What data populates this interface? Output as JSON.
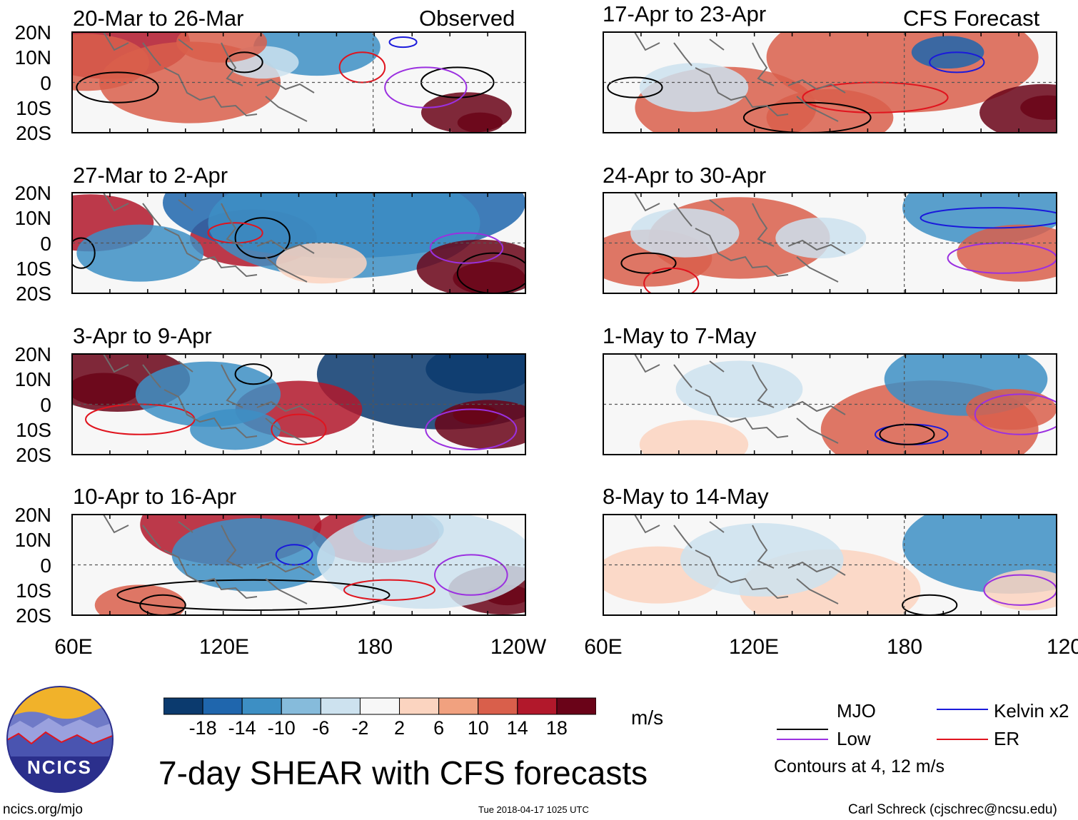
{
  "figure_title": "7-day SHEAR with CFS forecasts",
  "section_labels": {
    "left": "Observed",
    "right": "CFS Forecast"
  },
  "axes": {
    "lat_ticks": [
      "20N",
      "10N",
      "0",
      "10S",
      "20S"
    ],
    "lon_ticks": [
      "60E",
      "120E",
      "180",
      "120W"
    ]
  },
  "panels": [
    {
      "title": "20-Mar to 26-Mar",
      "type": "observed"
    },
    {
      "title": "27-Mar to 2-Apr",
      "type": "observed"
    },
    {
      "title": "3-Apr to 9-Apr",
      "type": "observed"
    },
    {
      "title": "10-Apr to 16-Apr",
      "type": "observed"
    },
    {
      "title": "17-Apr to 23-Apr",
      "type": "forecast"
    },
    {
      "title": "24-Apr to 30-Apr",
      "type": "forecast"
    },
    {
      "title": "1-May to 7-May",
      "type": "forecast"
    },
    {
      "title": "8-May to 14-May",
      "type": "forecast"
    }
  ],
  "colorbar": {
    "units": "m/s",
    "tick_labels": [
      "-18",
      "-14",
      "-10",
      "-6",
      "-2",
      "2",
      "6",
      "10",
      "14",
      "18"
    ],
    "colors": [
      "#0b3a6e",
      "#1f66ad",
      "#3d8fc4",
      "#86bbdb",
      "#cde2ef",
      "#f7f7f7",
      "#fbd4c0",
      "#f1a17f",
      "#d95f4b",
      "#b2182b",
      "#6a0318"
    ]
  },
  "legend": {
    "items": [
      {
        "label": "MJO",
        "color": "#000000"
      },
      {
        "label": "Kelvin x2",
        "color": "#1a1adb"
      },
      {
        "label": "Low",
        "color": "#9b30e0"
      },
      {
        "label": "ER",
        "color": "#e0141e"
      }
    ],
    "contour_note": "Contours at 4, 12 m/s"
  },
  "logo": {
    "text": "NCICS"
  },
  "footer": {
    "url": "ncics.org/mjo",
    "timestamp": "Tue 2018-04-17 1025 UTC",
    "credit": "Carl Schreck (cjschrec@ncsu.edu)"
  },
  "blob_fields": [
    [
      [
        8,
        2,
        18,
        3
      ],
      [
        3,
        6,
        14,
        2
      ],
      [
        26,
        10,
        20,
        2
      ],
      [
        54,
        3,
        14,
        -2
      ],
      [
        87,
        16,
        10,
        4
      ],
      [
        90,
        18,
        5,
        4
      ],
      [
        42,
        6,
        8,
        -1
      ],
      [
        33,
        2,
        10,
        2
      ]
    ],
    [
      [
        4,
        6,
        14,
        3
      ],
      [
        40,
        9,
        14,
        3
      ],
      [
        60,
        2,
        40,
        -3
      ],
      [
        60,
        6,
        30,
        -2
      ],
      [
        90,
        15,
        14,
        4
      ],
      [
        92,
        17,
        8,
        4
      ],
      [
        15,
        12,
        14,
        -2
      ],
      [
        55,
        14,
        10,
        1
      ]
    ],
    [
      [
        10,
        5,
        16,
        4
      ],
      [
        7,
        7,
        8,
        4
      ],
      [
        82,
        4,
        28,
        -4
      ],
      [
        90,
        3,
        12,
        -4
      ],
      [
        92,
        14,
        12,
        4
      ],
      [
        89,
        12,
        5,
        4
      ],
      [
        50,
        11,
        14,
        3
      ],
      [
        30,
        8,
        16,
        -2
      ],
      [
        36,
        15,
        10,
        -2
      ]
    ],
    [
      [
        35,
        2,
        20,
        3
      ],
      [
        67,
        4,
        14,
        3
      ],
      [
        72,
        3,
        10,
        -2
      ],
      [
        95,
        15,
        12,
        4
      ],
      [
        96,
        16,
        5,
        4
      ],
      [
        15,
        18,
        10,
        2
      ],
      [
        40,
        8,
        18,
        -2
      ],
      [
        78,
        9,
        24,
        -1
      ]
    ],
    [
      [
        66,
        5,
        30,
        2
      ],
      [
        76,
        4,
        8,
        -3
      ],
      [
        97,
        16,
        14,
        4
      ],
      [
        98,
        15,
        6,
        4
      ],
      [
        27,
        15,
        20,
        2
      ],
      [
        50,
        17,
        14,
        2
      ],
      [
        20,
        11,
        12,
        -1
      ]
    ],
    [
      [
        30,
        9,
        20,
        2
      ],
      [
        84,
        3,
        18,
        -2
      ],
      [
        92,
        12,
        14,
        2
      ],
      [
        10,
        13,
        14,
        2
      ],
      [
        48,
        9,
        10,
        -1
      ],
      [
        18,
        8,
        12,
        -1
      ]
    ],
    [
      [
        72,
        15,
        24,
        2
      ],
      [
        80,
        5,
        18,
        -2
      ],
      [
        90,
        11,
        10,
        2
      ],
      [
        30,
        7,
        14,
        -1
      ],
      [
        20,
        18,
        12,
        1
      ]
    ],
    [
      [
        90,
        6,
        24,
        -2
      ],
      [
        50,
        15,
        20,
        1
      ],
      [
        12,
        12,
        14,
        1
      ],
      [
        35,
        9,
        18,
        -1
      ],
      [
        94,
        15,
        10,
        1
      ]
    ]
  ],
  "contour_field": [
    [
      [
        10,
        11,
        9,
        3,
        "#000000"
      ],
      [
        38,
        6,
        4,
        2,
        "#000000"
      ],
      [
        85,
        10,
        8,
        3,
        "#000000"
      ],
      [
        78,
        11,
        9,
        4,
        "#9b30e0"
      ],
      [
        64,
        7,
        5,
        3,
        "#e0141e"
      ],
      [
        73,
        2,
        3,
        1,
        "#1a1adb"
      ]
    ],
    [
      [
        2,
        12,
        3,
        3,
        "#000000"
      ],
      [
        42,
        9,
        6,
        4,
        "#000000"
      ],
      [
        93,
        16,
        8,
        4,
        "#000000"
      ],
      [
        87,
        11,
        8,
        3,
        "#9b30e0"
      ],
      [
        36,
        8,
        6,
        2,
        "#e0141e"
      ]
    ],
    [
      [
        15,
        13,
        12,
        3,
        "#e0141e"
      ],
      [
        50,
        15,
        6,
        3,
        "#e0141e"
      ],
      [
        88,
        15,
        10,
        4,
        "#9b30e0"
      ],
      [
        40,
        4,
        4,
        2,
        "#000000"
      ]
    ],
    [
      [
        40,
        16,
        30,
        3,
        "#000000"
      ],
      [
        70,
        15,
        10,
        2,
        "#e0141e"
      ],
      [
        88,
        12,
        8,
        4,
        "#9b30e0"
      ],
      [
        20,
        18,
        5,
        2,
        "#000000"
      ],
      [
        49,
        8,
        4,
        2,
        "#1a1adb"
      ]
    ],
    [
      [
        7,
        11,
        6,
        2,
        "#000000"
      ],
      [
        60,
        13,
        16,
        3,
        "#e0141e"
      ],
      [
        78,
        6,
        6,
        2,
        "#1a1adb"
      ],
      [
        45,
        17,
        14,
        3,
        "#000000"
      ]
    ],
    [
      [
        86,
        5,
        16,
        2,
        "#1a1adb"
      ],
      [
        10,
        14,
        6,
        2,
        "#000000"
      ],
      [
        88,
        13,
        12,
        3,
        "#9b30e0"
      ],
      [
        15,
        18,
        6,
        3,
        "#e0141e"
      ]
    ],
    [
      [
        68,
        16,
        8,
        2,
        "#1a1adb"
      ],
      [
        67,
        16,
        6,
        2,
        "#000000"
      ],
      [
        92,
        12,
        10,
        4,
        "#9b30e0"
      ]
    ],
    [
      [
        72,
        18,
        6,
        2,
        "#000000"
      ],
      [
        92,
        15,
        8,
        3,
        "#9b30e0"
      ]
    ]
  ]
}
